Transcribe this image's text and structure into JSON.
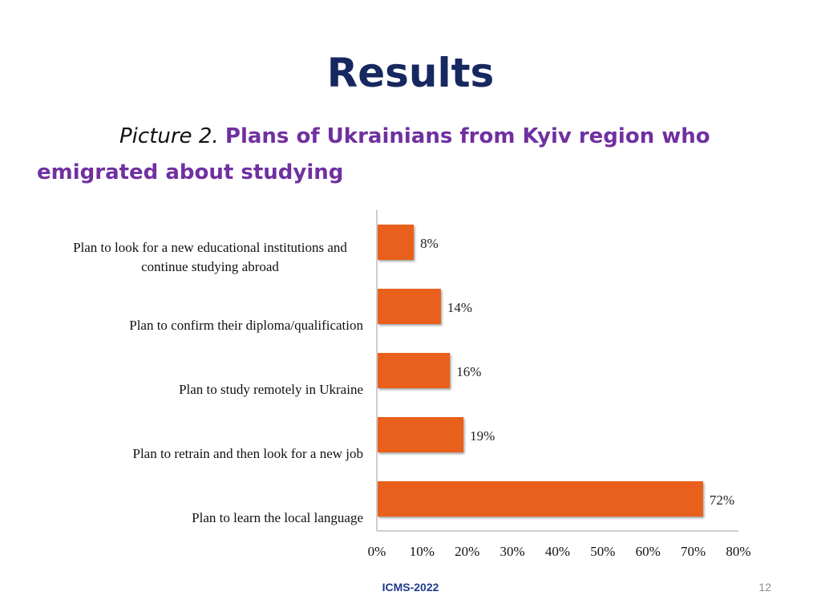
{
  "slide": {
    "title": "Results",
    "caption_label": "Picture  2.",
    "caption_text": "Plans of Ukrainians from Kyiv region who emigrated about studying",
    "footer": "ICMS-2022",
    "page_number": "12"
  },
  "colors": {
    "bar": "#e8611f",
    "title": "#17275f",
    "caption": "#7030a0",
    "axis": "#bdbdbd"
  },
  "chart_data": {
    "type": "bar",
    "orientation": "horizontal",
    "categories": [
      [
        "Plan to look for a new educational institutions and",
        "continue studying abroad"
      ],
      [
        "Plan to confirm their diploma/qualification"
      ],
      [
        "Plan to study remotely in Ukraine"
      ],
      [
        "Plan to retrain and then look for a new job"
      ],
      [
        "Plan to learn the local language"
      ]
    ],
    "values": [
      8,
      14,
      16,
      19,
      72
    ],
    "data_labels": [
      "8%",
      "14%",
      "16%",
      "19%",
      "72%"
    ],
    "x_ticks": [
      0,
      10,
      20,
      30,
      40,
      50,
      60,
      70,
      80
    ],
    "x_tick_labels": [
      "0%",
      "10%",
      "20%",
      "30%",
      "40%",
      "50%",
      "60%",
      "70%",
      "80%"
    ],
    "xlim": [
      0,
      80
    ],
    "grid": false,
    "legend": "none"
  }
}
